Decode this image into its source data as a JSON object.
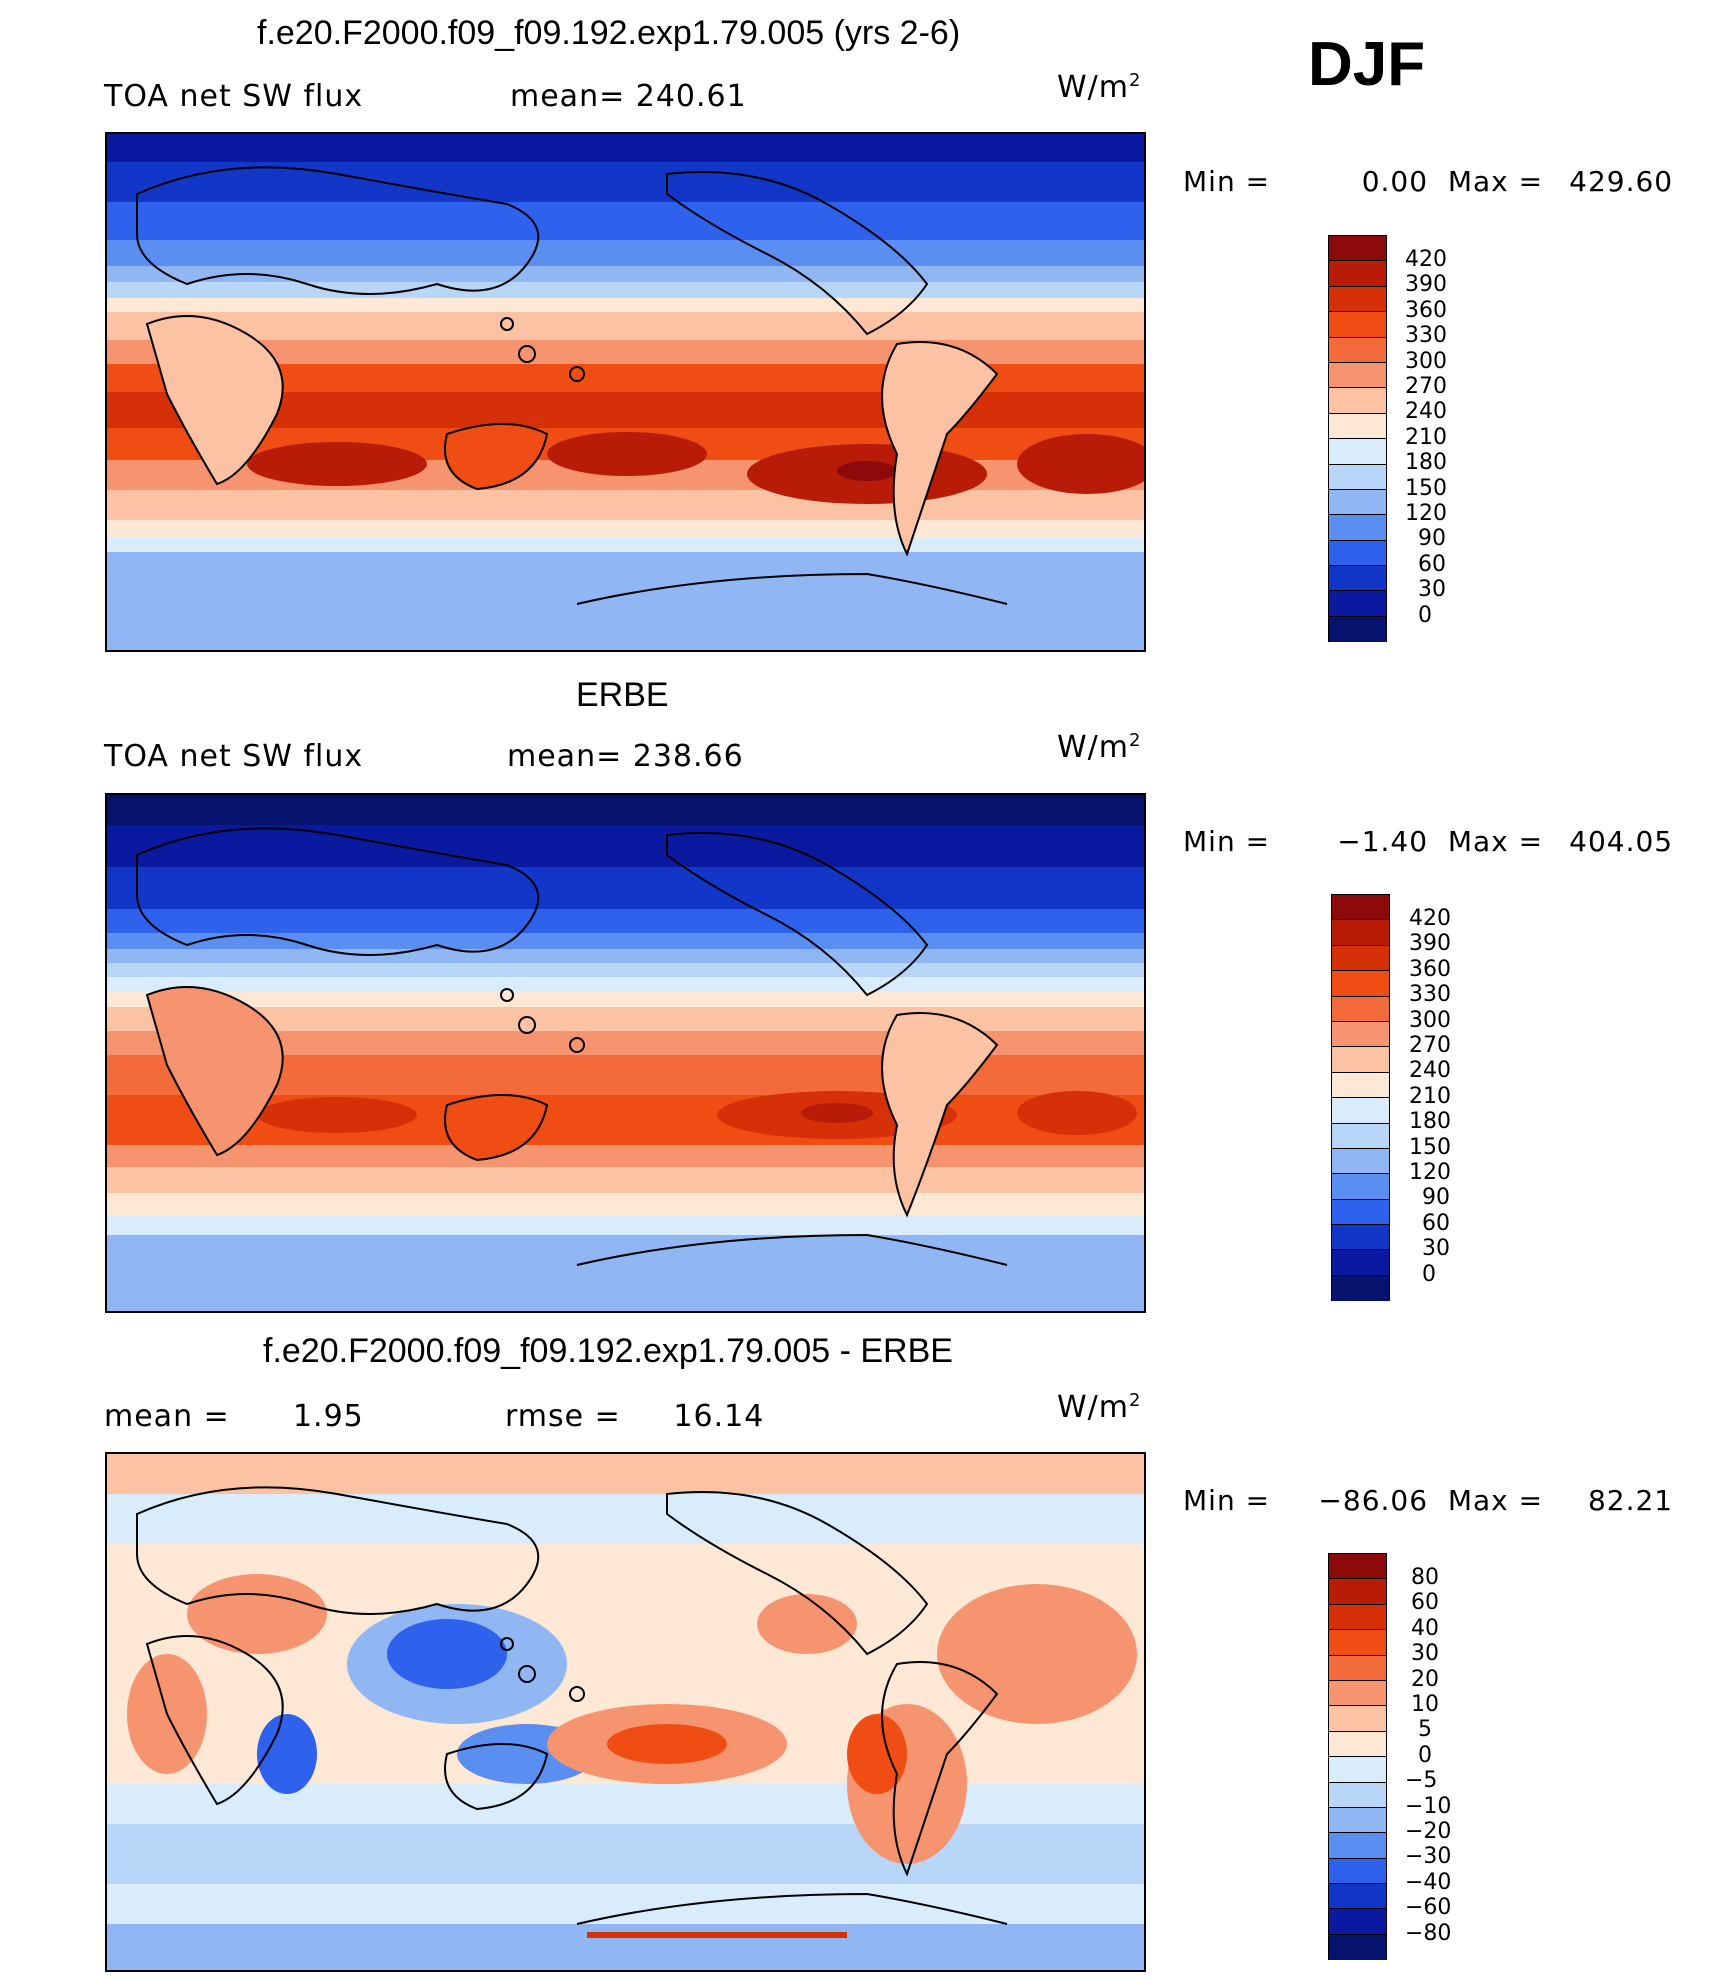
{
  "season": "DJF",
  "units_base": "W/m",
  "units_exp": "2",
  "panels": [
    {
      "title": "f.e20.F2000.f09_f09.192.exp1.79.005 (yrs 2-6)",
      "left_label": "TOA net SW flux",
      "center_label": "mean= 240.61",
      "min_label": "Min =",
      "min_value": "0.00",
      "max_label": "Max =",
      "max_value": "429.60"
    },
    {
      "title": "ERBE",
      "left_label": "TOA net SW flux",
      "center_label": "mean= 238.66",
      "min_label": "Min =",
      "min_value": "−1.40",
      "max_label": "Max =",
      "max_value": "404.05"
    },
    {
      "title": "f.e20.F2000.f09_f09.192.exp1.79.005 - ERBE",
      "left_label": "mean =      1.95",
      "center_label": "rmse =     16.14",
      "min_label": "Min =",
      "min_value": "−86.06",
      "max_label": "Max =",
      "max_value": "82.21"
    }
  ],
  "chart_data": [
    {
      "type": "heatmap",
      "title": "f.e20.F2000.f09_f09.192.exp1.79.005 (yrs 2-6)",
      "variable": "TOA net SW flux",
      "units": "W/m2",
      "mean": 240.61,
      "min": 0.0,
      "max": 429.6,
      "colorbar_levels": [
        "420",
        "390",
        "360",
        "330",
        "300",
        "270",
        "240",
        "210",
        "180",
        "150",
        "120",
        "90",
        "60",
        "30",
        "0"
      ],
      "colors": [
        "#8c0a0a",
        "#b81c08",
        "#d63008",
        "#f04d14",
        "#f36b3a",
        "#f69470",
        "#fbc2a4",
        "#fde8d6",
        "#d8ecfb",
        "#b8d6f8",
        "#90b6f4",
        "#5a8ef0",
        "#2e62ec",
        "#1237c8",
        "#0a1aa0",
        "#05126e"
      ]
    },
    {
      "type": "heatmap",
      "title": "ERBE",
      "variable": "TOA net SW flux",
      "units": "W/m2",
      "mean": 238.66,
      "min": -1.4,
      "max": 404.05,
      "colorbar_levels": [
        "420",
        "390",
        "360",
        "330",
        "300",
        "270",
        "240",
        "210",
        "180",
        "150",
        "120",
        "90",
        "60",
        "30",
        "0"
      ],
      "colors": [
        "#8c0a0a",
        "#b81c08",
        "#d63008",
        "#f04d14",
        "#f36b3a",
        "#f69470",
        "#fbc2a4",
        "#fde8d6",
        "#d8ecfb",
        "#b8d6f8",
        "#90b6f4",
        "#5a8ef0",
        "#2e62ec",
        "#1237c8",
        "#0a1aa0",
        "#05126e"
      ]
    },
    {
      "type": "heatmap",
      "title": "f.e20.F2000.f09_f09.192.exp1.79.005 - ERBE",
      "units": "W/m2",
      "mean": 1.95,
      "rmse": 16.14,
      "min": -86.06,
      "max": 82.21,
      "colorbar_levels": [
        "80",
        "60",
        "40",
        "30",
        "20",
        "10",
        "5",
        "0",
        "−5",
        "−10",
        "−20",
        "−30",
        "−40",
        "−60",
        "−80"
      ],
      "colors": [
        "#8c0a0a",
        "#b81c08",
        "#d63008",
        "#f04d14",
        "#f36b3a",
        "#f69470",
        "#fbc2a4",
        "#fde8d6",
        "#d8ecfb",
        "#b8d6f8",
        "#90b6f4",
        "#5a8ef0",
        "#2e62ec",
        "#1237c8",
        "#0a1aa0",
        "#05126e"
      ]
    }
  ]
}
